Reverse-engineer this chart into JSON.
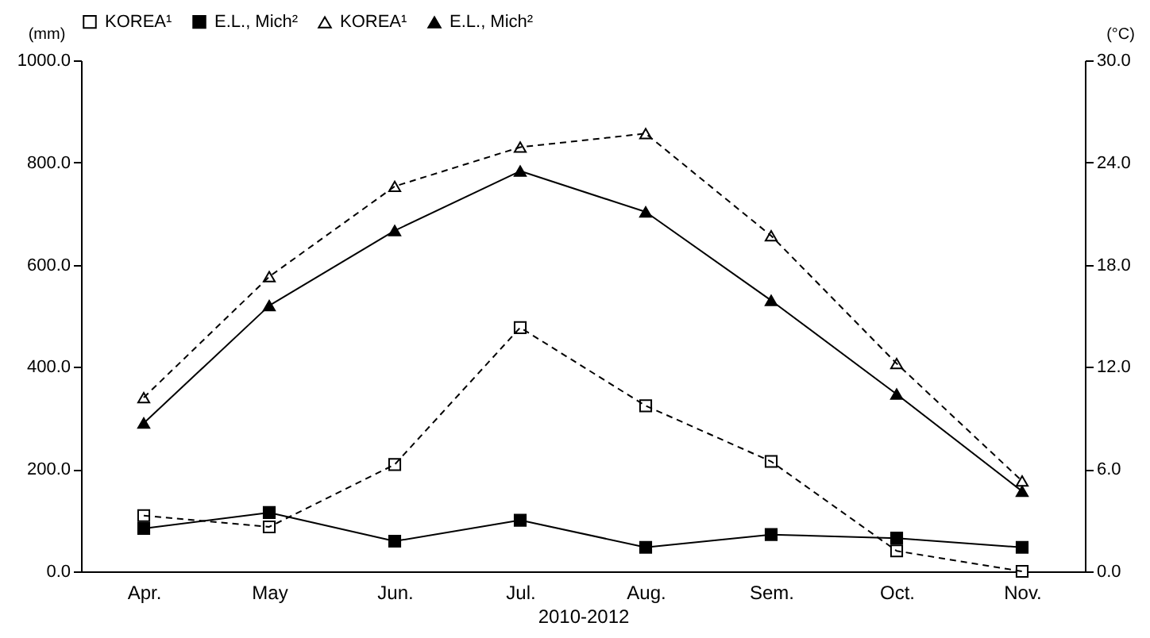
{
  "chart_data": {
    "type": "line",
    "xlabel": "2010-2012",
    "ylabel": "(mm)",
    "y2label": "(°C)",
    "categories": [
      "Apr.",
      "May",
      "Jun.",
      "Jul.",
      "Aug.",
      "Sem.",
      "Oct.",
      "Nov."
    ],
    "series": [
      {
        "name": "KOREA¹",
        "color": "#000000",
        "marker": "square",
        "line_style": "dashed",
        "values": [
          109,
          87,
          209,
          477,
          324,
          215,
          40,
          0
        ]
      },
      {
        "name": "E.L., Mich²",
        "color": "#000000",
        "marker": "square",
        "line_style": "solid",
        "values": [
          84,
          115,
          59,
          100,
          47,
          72,
          65,
          47
        ]
      },
      {
        "name": "KOREA¹",
        "color": "#000000",
        "marker": "triangle",
        "line_style": "dashed",
        "axis": "y2",
        "values": [
          10.2,
          17.3,
          22.6,
          24.9,
          25.7,
          19.7,
          12.2,
          5.3
        ]
      },
      {
        "name": "E.L., Mich²",
        "color": "#000000",
        "marker": "triangle",
        "line_style": "solid",
        "axis": "y2",
        "values": [
          8.7,
          15.6,
          20.0,
          23.5,
          21.1,
          15.9,
          10.4,
          4.7
        ]
      }
    ],
    "ylim": [
      0,
      1000
    ],
    "yticks": [
      {
        "value": 0,
        "label": "0.0"
      },
      {
        "value": 200,
        "label": "200.0"
      },
      {
        "value": 400,
        "label": "400.0"
      },
      {
        "value": 600,
        "label": "600.0"
      },
      {
        "value": 800,
        "label": "800.0"
      },
      {
        "value": 1000,
        "label": "1000.0"
      }
    ],
    "y2lim": [
      0,
      30
    ],
    "y2ticks": [
      {
        "value": 0,
        "label": "0.0"
      },
      {
        "value": 6,
        "label": "6.0"
      },
      {
        "value": 12,
        "label": "12.0"
      },
      {
        "value": 18,
        "label": "18.0"
      },
      {
        "value": 24,
        "label": "24.0"
      },
      {
        "value": 30,
        "label": "30.0"
      }
    ],
    "grid": false,
    "legend": "top"
  }
}
